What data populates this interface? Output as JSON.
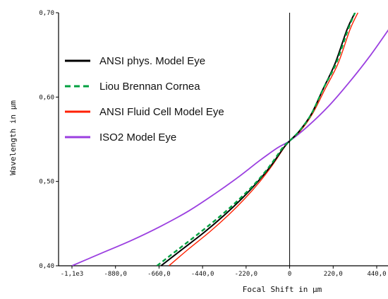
{
  "chart_data": {
    "type": "line",
    "title": "",
    "xlabel": "Focal Shift in µm",
    "ylabel": "Wavelength in µm",
    "xlim": [
      -1100,
      530
    ],
    "ylim": [
      0.4,
      0.7
    ],
    "x_ticks": [
      {
        "value": -1100,
        "label": "-1,1e3"
      },
      {
        "value": -880,
        "label": "-880,0"
      },
      {
        "value": -660,
        "label": "-660,0"
      },
      {
        "value": -440,
        "label": "-440,0"
      },
      {
        "value": -220,
        "label": "-220,0"
      },
      {
        "value": 0,
        "label": "0"
      },
      {
        "value": 220,
        "label": "220,0"
      },
      {
        "value": 440,
        "label": "440,0"
      }
    ],
    "y_ticks": [
      {
        "value": 0.4,
        "label": "0,40"
      },
      {
        "value": 0.5,
        "label": "0,50"
      },
      {
        "value": 0.6,
        "label": "0,60"
      },
      {
        "value": 0.7,
        "label": "0,70"
      }
    ],
    "vertical_reference_line_x": 0,
    "grid": false,
    "legend_position": "top-left",
    "series": [
      {
        "name": "ANSI phys. Model Eye",
        "color": "#000000",
        "dash": "solid",
        "x": [
          -650,
          -540,
          -430,
          -330,
          -240,
          -160,
          -90,
          -30,
          0,
          50,
          110,
          170,
          230,
          290,
          330
        ],
        "y": [
          0.4,
          0.42,
          0.44,
          0.46,
          0.48,
          0.5,
          0.52,
          0.54,
          0.548,
          0.56,
          0.58,
          0.61,
          0.64,
          0.68,
          0.7
        ]
      },
      {
        "name": "Liou Brennan Cornea",
        "color": "#00a040",
        "dash": "dashed",
        "x": [
          -670,
          -560,
          -450,
          -345,
          -250,
          -165,
          -95,
          -35,
          0,
          50,
          110,
          170,
          235,
          295,
          330
        ],
        "y": [
          0.4,
          0.42,
          0.44,
          0.46,
          0.48,
          0.5,
          0.52,
          0.54,
          0.548,
          0.56,
          0.58,
          0.61,
          0.64,
          0.68,
          0.7
        ]
      },
      {
        "name": "ANSI Fluid Cell Model Eye",
        "color": "#ff2000",
        "dash": "solid",
        "x": [
          -610,
          -510,
          -405,
          -310,
          -225,
          -150,
          -85,
          -28,
          0,
          55,
          115,
          180,
          245,
          305,
          345
        ],
        "y": [
          0.4,
          0.42,
          0.44,
          0.46,
          0.48,
          0.5,
          0.52,
          0.54,
          0.548,
          0.56,
          0.58,
          0.61,
          0.64,
          0.68,
          0.7
        ]
      },
      {
        "name": "ISO2 Model Eye",
        "color": "#9b3fe0",
        "dash": "solid",
        "x": [
          -1100,
          -950,
          -800,
          -650,
          -510,
          -380,
          -260,
          -150,
          -60,
          0,
          90,
          200,
          310,
          410,
          500,
          530
        ],
        "y": [
          0.4,
          0.415,
          0.43,
          0.447,
          0.465,
          0.485,
          0.505,
          0.525,
          0.54,
          0.548,
          0.565,
          0.59,
          0.62,
          0.65,
          0.68,
          0.69
        ]
      }
    ]
  }
}
